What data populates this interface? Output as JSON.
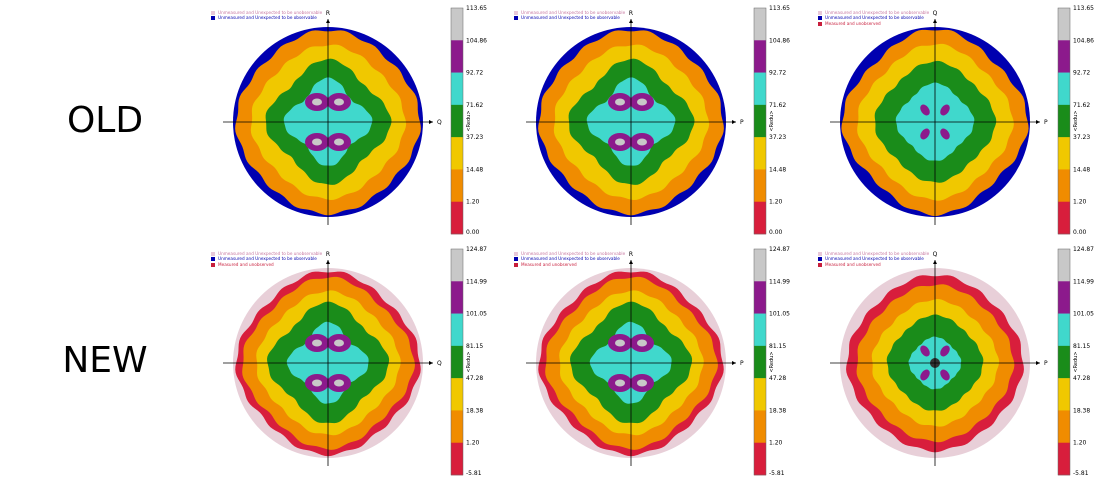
{
  "row_labels": [
    "OLD",
    "NEW"
  ],
  "chart_data": [
    {
      "type": "heatmap",
      "row": "OLD",
      "axes": {
        "vertical": "R",
        "horizontal": "Q"
      },
      "legend": [
        {
          "label": "Unmeasured and Unexpected to be unobservable",
          "color": "#e8c8d8"
        },
        {
          "label": "Unmeasured and Unexpected to be observable",
          "color": "#0000b0"
        }
      ],
      "colorbar": {
        "title": "<Redu>",
        "ticks": [
          "113.65",
          "104.86",
          "92.72",
          "71.62",
          "37.23",
          "14.48",
          "1.20",
          "0.00"
        ],
        "colors": [
          "#c8c8c8",
          "#8c1a8c",
          "#40d8cc",
          "#1a8c1a",
          "#f0c800",
          "#f08c00",
          "#d81e3c"
        ]
      },
      "pattern": "butterfly",
      "edge_color": "#0000b0"
    },
    {
      "type": "heatmap",
      "row": "OLD",
      "axes": {
        "vertical": "R",
        "horizontal": "P"
      },
      "legend": [
        {
          "label": "Unmeasured and Unexpected to be unobservable",
          "color": "#e8c8d8"
        },
        {
          "label": "Unmeasured and Unexpected to be observable",
          "color": "#0000b0"
        }
      ],
      "colorbar": {
        "title": "<Redu>",
        "ticks": [
          "113.65",
          "104.86",
          "92.72",
          "71.62",
          "37.23",
          "14.48",
          "1.20",
          "0.00"
        ],
        "colors": [
          "#c8c8c8",
          "#8c1a8c",
          "#40d8cc",
          "#1a8c1a",
          "#f0c800",
          "#f08c00",
          "#d81e3c"
        ]
      },
      "pattern": "butterfly",
      "edge_color": "#0000b0"
    },
    {
      "type": "heatmap",
      "row": "OLD",
      "axes": {
        "vertical": "Q",
        "horizontal": "P"
      },
      "legend": [
        {
          "label": "Unmeasured and Unexpected to be unobservable",
          "color": "#e8c8d8"
        },
        {
          "label": "Unmeasured and Unexpected to be observable",
          "color": "#0000b0"
        },
        {
          "label": "Measured and unobserved",
          "color": "#c81e3c"
        }
      ],
      "colorbar": {
        "title": "<Redu>",
        "ticks": [
          "113.65",
          "104.86",
          "92.72",
          "71.62",
          "37.23",
          "14.48",
          "1.20",
          "0.00"
        ],
        "colors": [
          "#c8c8c8",
          "#8c1a8c",
          "#40d8cc",
          "#1a8c1a",
          "#f0c800",
          "#f08c00",
          "#d81e3c"
        ]
      },
      "pattern": "rings",
      "edge_color": "#0000b0"
    },
    {
      "type": "heatmap",
      "row": "NEW",
      "axes": {
        "vertical": "R",
        "horizontal": "Q"
      },
      "legend": [
        {
          "label": "Unmeasured and Unexpected to be unobservable",
          "color": "#e8c8d8"
        },
        {
          "label": "Unmeasured and Unexpected to be observable",
          "color": "#0000b0"
        },
        {
          "label": "Measured and unobserved",
          "color": "#c81e3c"
        }
      ],
      "colorbar": {
        "title": "<Redu>",
        "ticks": [
          "124.87",
          "114.99",
          "101.05",
          "81.15",
          "47.28",
          "18.38",
          "1.20",
          "-5.81"
        ],
        "colors": [
          "#c8c8c8",
          "#8c1a8c",
          "#40d8cc",
          "#1a8c1a",
          "#f0c800",
          "#f08c00",
          "#d81e3c"
        ]
      },
      "pattern": "butterfly",
      "edge_color": "#e8cfd8"
    },
    {
      "type": "heatmap",
      "row": "NEW",
      "axes": {
        "vertical": "R",
        "horizontal": "P"
      },
      "legend": [
        {
          "label": "Unmeasured and Unexpected to be unobservable",
          "color": "#e8c8d8"
        },
        {
          "label": "Unmeasured and Unexpected to be observable",
          "color": "#0000b0"
        },
        {
          "label": "Measured and unobserved",
          "color": "#c81e3c"
        }
      ],
      "colorbar": {
        "title": "<Redu>",
        "ticks": [
          "124.87",
          "114.99",
          "101.05",
          "81.15",
          "47.28",
          "18.38",
          "1.20",
          "-5.81"
        ],
        "colors": [
          "#c8c8c8",
          "#8c1a8c",
          "#40d8cc",
          "#1a8c1a",
          "#f0c800",
          "#f08c00",
          "#d81e3c"
        ]
      },
      "pattern": "butterfly",
      "edge_color": "#e8cfd8"
    },
    {
      "type": "heatmap",
      "row": "NEW",
      "axes": {
        "vertical": "Q",
        "horizontal": "P"
      },
      "legend": [
        {
          "label": "Unmeasured and Unexpected to be unobservable",
          "color": "#e8c8d8"
        },
        {
          "label": "Unmeasured and Unexpected to be observable",
          "color": "#0000b0"
        },
        {
          "label": "Measured and unobserved",
          "color": "#c81e3c"
        }
      ],
      "colorbar": {
        "title": "<Redu>",
        "ticks": [
          "124.87",
          "114.99",
          "101.05",
          "81.15",
          "47.28",
          "18.38",
          "1.20",
          "-5.81"
        ],
        "colors": [
          "#c8c8c8",
          "#8c1a8c",
          "#40d8cc",
          "#1a8c1a",
          "#f0c800",
          "#f08c00",
          "#d81e3c"
        ]
      },
      "pattern": "rings",
      "edge_color": "#e8cfd8"
    }
  ]
}
